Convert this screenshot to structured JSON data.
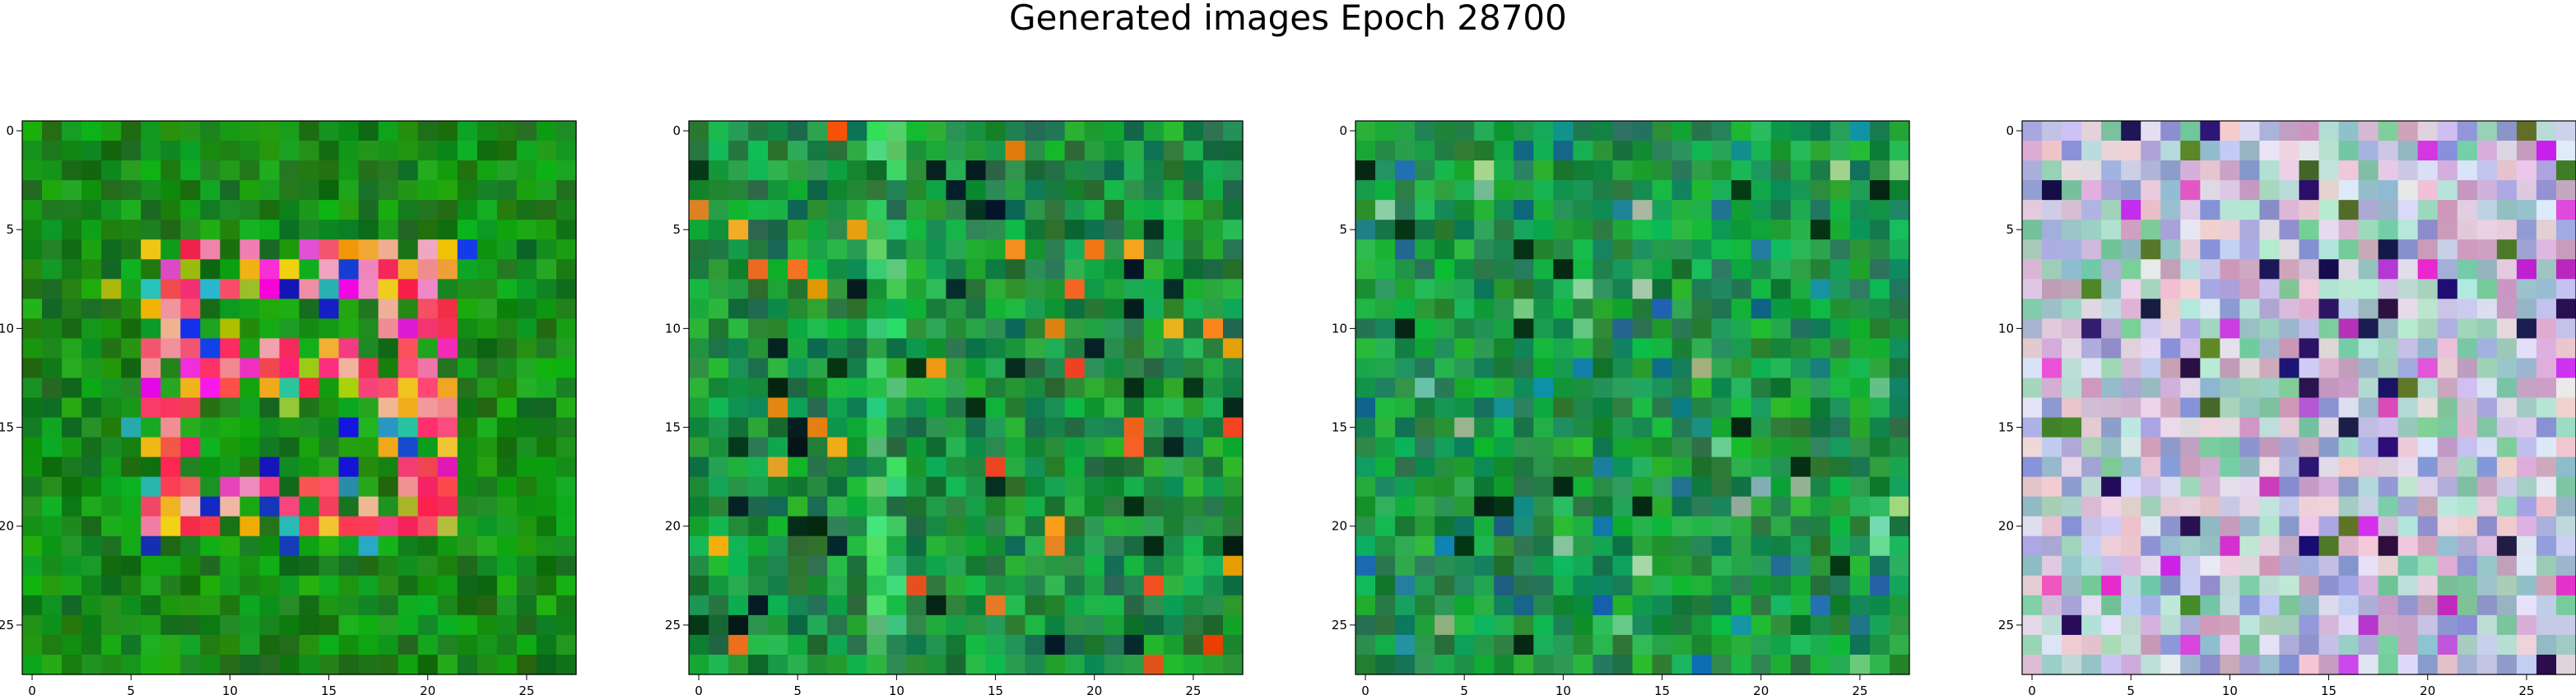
{
  "title": "Generated images Epoch 28700",
  "chart_data": {
    "type": "heatmap",
    "title": "Generated images Epoch 28700",
    "panels": [
      {
        "base_color": "#0b8a1e",
        "pattern": "pink-ring",
        "grid": [
          28,
          28
        ],
        "xlim": [
          0,
          27
        ],
        "ylim": [
          27,
          0
        ],
        "xticks": [
          0,
          5,
          10,
          15,
          20,
          25
        ],
        "yticks": [
          0,
          5,
          10,
          15,
          20,
          25
        ]
      },
      {
        "base_color": "#0b8a3a",
        "pattern": "green-noise-stripe",
        "grid": [
          28,
          28
        ],
        "xlim": [
          0,
          27
        ],
        "ylim": [
          27,
          0
        ],
        "xticks": [
          0,
          5,
          10,
          15,
          20,
          25
        ],
        "yticks": [
          0,
          5,
          10,
          15,
          20,
          25
        ]
      },
      {
        "base_color": "#0b8a40",
        "pattern": "green-noise",
        "grid": [
          28,
          28
        ],
        "xlim": [
          0,
          27
        ],
        "ylim": [
          27,
          0
        ],
        "xticks": [
          0,
          5,
          10,
          15,
          20,
          25
        ],
        "yticks": [
          0,
          5,
          10,
          15,
          20,
          25
        ]
      },
      {
        "base_color": "#c8c8e0",
        "pattern": "pastel-noise",
        "grid": [
          28,
          28
        ],
        "xlim": [
          0,
          27
        ],
        "ylim": [
          27,
          0
        ],
        "xticks": [
          0,
          5,
          10,
          15,
          20,
          25
        ],
        "yticks": [
          0,
          5,
          10,
          15,
          20,
          25
        ]
      }
    ]
  }
}
